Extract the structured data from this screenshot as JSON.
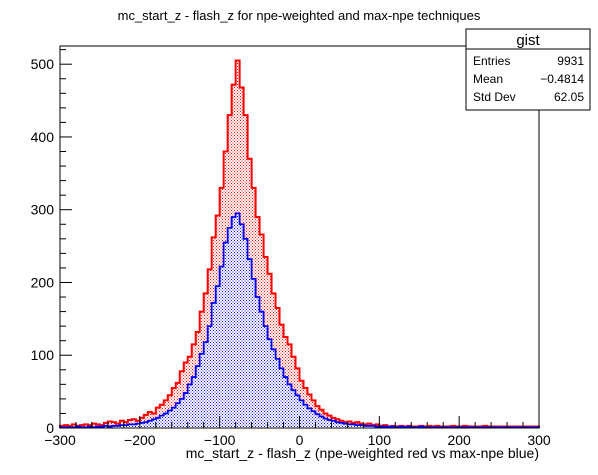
{
  "chart_data": {
    "type": "bar",
    "title": "mc_start_z - flash_z for npe-weighted and max-npe techniques",
    "xlabel": "mc_start_z - flash_z (npe-weighted red vs max-npe blue)",
    "ylabel": "",
    "xlim": [
      -300,
      300
    ],
    "ylim": [
      0,
      525
    ],
    "x_ticks": [
      -300,
      -200,
      -100,
      0,
      100,
      200,
      300
    ],
    "y_ticks": [
      0,
      100,
      200,
      300,
      400,
      500
    ],
    "bin_width": 5,
    "bin_start": -300,
    "series": [
      {
        "name": "npe-weighted",
        "color": "#ff0000",
        "fill": "hatched-red",
        "values": [
          3,
          4,
          3,
          5,
          3,
          4,
          5,
          4,
          6,
          5,
          4,
          7,
          9,
          8,
          6,
          10,
          8,
          11,
          12,
          10,
          14,
          18,
          22,
          20,
          28,
          32,
          38,
          45,
          55,
          62,
          78,
          90,
          98,
          115,
          132,
          160,
          185,
          218,
          262,
          292,
          330,
          380,
          430,
          472,
          505,
          468,
          430,
          370,
          330,
          290,
          266,
          235,
          212,
          185,
          165,
          142,
          125,
          115,
          98,
          82,
          65,
          55,
          46,
          38,
          30,
          25,
          20,
          17,
          14,
          12,
          10,
          8,
          9,
          7,
          8,
          6,
          5,
          6,
          4,
          5,
          3,
          4,
          2,
          3,
          2,
          3,
          2,
          3,
          2,
          2,
          3,
          2,
          3,
          2,
          3,
          2,
          2,
          2,
          3,
          2,
          2,
          3,
          2,
          2,
          2,
          2,
          3,
          2,
          2,
          2,
          2,
          2,
          2,
          2,
          2,
          2,
          2,
          2,
          2,
          2
        ]
      },
      {
        "name": "max-npe",
        "color": "#0000ff",
        "fill": "hatched-blue",
        "values": [
          1,
          1,
          1,
          1,
          2,
          1,
          1,
          2,
          1,
          2,
          2,
          3,
          2,
          3,
          3,
          4,
          4,
          5,
          5,
          6,
          7,
          8,
          10,
          12,
          14,
          17,
          20,
          24,
          28,
          34,
          40,
          48,
          60,
          70,
          85,
          102,
          118,
          140,
          172,
          195,
          222,
          255,
          275,
          290,
          295,
          280,
          260,
          232,
          205,
          180,
          160,
          140,
          122,
          108,
          95,
          82,
          70,
          60,
          52,
          45,
          38,
          32,
          27,
          23,
          19,
          16,
          13,
          11,
          10,
          8,
          7,
          6,
          5,
          5,
          4,
          4,
          3,
          3,
          3,
          2,
          2,
          2,
          2,
          2,
          1,
          2,
          1,
          2,
          1,
          1,
          2,
          1,
          1,
          1,
          1,
          1,
          1,
          1,
          1,
          1,
          1,
          1,
          1,
          1,
          1,
          1,
          1,
          1,
          1,
          1,
          1,
          1,
          1,
          1,
          1,
          1,
          1,
          1,
          1,
          1
        ]
      }
    ],
    "stats_box": {
      "title": "gist",
      "rows": [
        {
          "label": "Entries",
          "value": "9931"
        },
        {
          "label": "Mean",
          "value": "−0.4814"
        },
        {
          "label": "Std Dev",
          "value": "62.05"
        }
      ]
    }
  }
}
